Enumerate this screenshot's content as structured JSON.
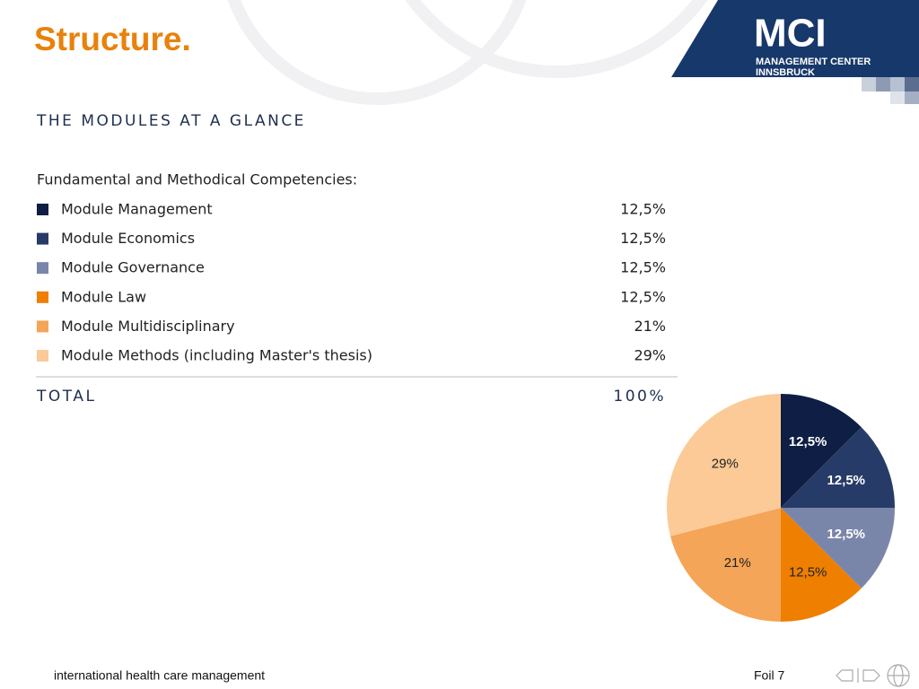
{
  "header": {
    "title": "Structure.",
    "logo_text": "MCI",
    "logo_lines": [
      "MANAGEMENT CENTER",
      "INNSBRUCK"
    ]
  },
  "section_title": "THE MODULES AT A GLANCE",
  "list": {
    "heading": "Fundamental and Methodical Competencies:",
    "items": [
      {
        "name": "Module Management",
        "share": "12,5%"
      },
      {
        "name": "Module Economics",
        "share": "12,5%"
      },
      {
        "name": "Module Governance",
        "share": "12,5%"
      },
      {
        "name": "Module Law",
        "share": "12,5%"
      },
      {
        "name": "Module Multidisciplinary",
        "share": "21%"
      },
      {
        "name": "Module Methods (including Master's thesis)",
        "share": "29%"
      }
    ],
    "total_label": "TOTAL",
    "total_value": "100%"
  },
  "chart_data": {
    "type": "pie",
    "values": [
      12.5,
      12.5,
      12.5,
      12.5,
      21,
      29
    ],
    "value_labels": [
      "12,5%",
      "12,5%",
      "12,5%",
      "12,5%",
      "21%",
      "29%"
    ],
    "colors": [
      "#0e1e44",
      "#263b68",
      "#7a86a9",
      "#ee7f00",
      "#f5a557",
      "#fbca96"
    ]
  },
  "footer": {
    "left": "international health care management",
    "right": "Foil 7"
  }
}
